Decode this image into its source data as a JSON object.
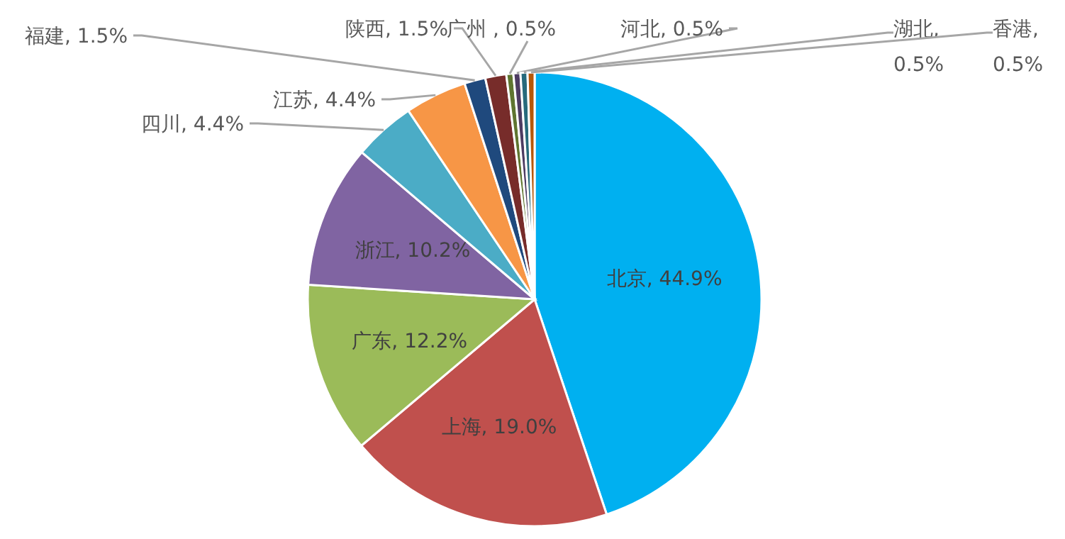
{
  "chart_data": {
    "type": "pie",
    "categories": [
      "北京",
      "上海",
      "广东",
      "浙江",
      "四川",
      "江苏",
      "福建",
      "陕西",
      "广州",
      "河北",
      "湖北",
      "香港"
    ],
    "values": [
      44.9,
      19.0,
      12.2,
      10.2,
      4.4,
      4.4,
      1.5,
      1.5,
      0.5,
      0.5,
      0.5,
      0.5
    ],
    "value_labels": [
      ", 44.9%",
      ", 19.0%",
      ", 12.2%",
      ", 10.2%",
      ", 4.4%",
      ", 4.4%",
      ", 1.5%",
      ", 1.5%",
      " , 0.5%",
      ", 0.5%",
      ", 0.5%",
      ", 0.5%"
    ],
    "colors": [
      "#00b0f0",
      "#c0504d",
      "#9bbb59",
      "#8064a2",
      "#4bacc6",
      "#f79646",
      "#1f497d",
      "#772c2a",
      "#5f7530",
      "#4d3b62",
      "#276a7c",
      "#b65708"
    ]
  }
}
